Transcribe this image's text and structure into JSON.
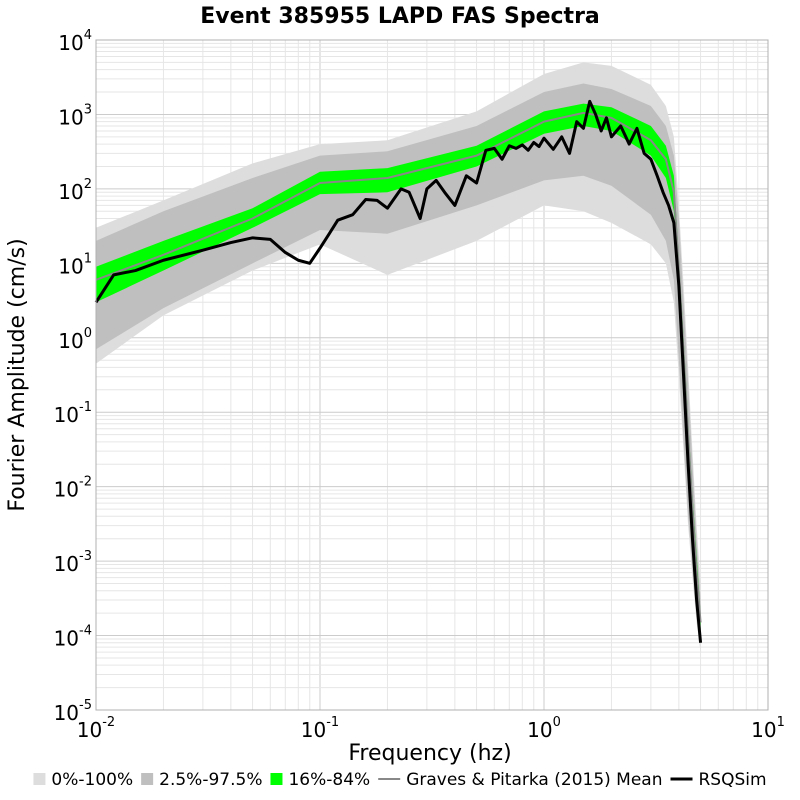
{
  "chart_data": {
    "type": "area",
    "title": "Event 385955 LAPD FAS Spectra",
    "xlabel": "Frequency (hz)",
    "ylabel": "Fourier Amplitude (cm/s)",
    "x_scale": "log",
    "y_scale": "log",
    "xlim": [
      0.01,
      10
    ],
    "ylim": [
      1e-05,
      10000
    ],
    "x_ticks": [
      {
        "base": "10",
        "exp": "-2"
      },
      {
        "base": "10",
        "exp": "-1"
      },
      {
        "base": "10",
        "exp": "0"
      },
      {
        "base": "10",
        "exp": "1"
      }
    ],
    "y_ticks": [
      {
        "base": "10",
        "exp": "-5"
      },
      {
        "base": "10",
        "exp": "-4"
      },
      {
        "base": "10",
        "exp": "-3"
      },
      {
        "base": "10",
        "exp": "-2"
      },
      {
        "base": "10",
        "exp": "-1"
      },
      {
        "base": "10",
        "exp": "0"
      },
      {
        "base": "10",
        "exp": "1"
      },
      {
        "base": "10",
        "exp": "2"
      },
      {
        "base": "10",
        "exp": "3"
      },
      {
        "base": "10",
        "exp": "4"
      }
    ],
    "grid": true,
    "legend_position": "bottom",
    "bands": [
      {
        "name": "0%-100%",
        "color": "#dddddd",
        "x": [
          0.01,
          0.02,
          0.05,
          0.1,
          0.2,
          0.5,
          1,
          1.5,
          2,
          3,
          3.5,
          3.8,
          4,
          4.2,
          4.4,
          4.6,
          4.8,
          5.0
        ],
        "lower": [
          0.45,
          2.0,
          8.0,
          18,
          7,
          20,
          60,
          50,
          35,
          18,
          10,
          3.0,
          0.3,
          0.03,
          0.003,
          0.0006,
          0.00015,
          6e-05
        ],
        "upper": [
          30,
          70,
          220,
          400,
          450,
          1100,
          3500,
          5000,
          4500,
          2500,
          1300,
          500,
          60,
          5,
          0.4,
          0.03,
          0.003,
          0.0005
        ]
      },
      {
        "name": "2.5%-97.5%",
        "color": "#bfbfbf",
        "x": [
          0.01,
          0.02,
          0.05,
          0.1,
          0.2,
          0.5,
          1,
          1.5,
          2,
          3,
          3.5,
          3.8,
          4,
          4.2,
          4.4,
          4.6,
          4.8,
          5.0
        ],
        "lower": [
          0.7,
          2.5,
          10,
          28,
          25,
          60,
          130,
          150,
          110,
          45,
          20,
          6,
          0.5,
          0.04,
          0.004,
          0.0008,
          0.0002,
          8e-05
        ],
        "upper": [
          20,
          50,
          140,
          280,
          320,
          700,
          2000,
          2600,
          2200,
          1300,
          700,
          280,
          40,
          3,
          0.25,
          0.02,
          0.002,
          0.0003
        ]
      },
      {
        "name": "16%-84%",
        "color": "#00ff00",
        "x": [
          0.01,
          0.02,
          0.05,
          0.1,
          0.2,
          0.5,
          1,
          1.5,
          2,
          3,
          3.5,
          3.8,
          4,
          4.2,
          4.4,
          4.6,
          4.8,
          5.0
        ],
        "lower": [
          3.0,
          8.0,
          30,
          85,
          90,
          200,
          550,
          700,
          600,
          280,
          140,
          50,
          4,
          0.3,
          0.03,
          0.003,
          0.0004,
          0.00012
        ],
        "upper": [
          9.0,
          20,
          55,
          170,
          190,
          380,
          1100,
          1400,
          1250,
          700,
          380,
          150,
          12,
          1.0,
          0.08,
          0.008,
          0.0012,
          0.0002
        ]
      }
    ],
    "series": [
      {
        "name": "Graves & Pitarka (2015) Mean",
        "color": "#888888",
        "x": [
          0.01,
          0.02,
          0.05,
          0.1,
          0.2,
          0.5,
          1,
          1.5,
          2,
          3,
          3.5,
          3.8,
          4,
          4.2,
          4.4,
          4.6,
          4.8,
          5.0
        ],
        "y": [
          6.0,
          13,
          40,
          120,
          140,
          280,
          800,
          1050,
          900,
          450,
          250,
          90,
          8,
          0.6,
          0.05,
          0.005,
          0.0007,
          0.00015
        ]
      },
      {
        "name": "RSQSim",
        "color": "#000000",
        "x": [
          0.01,
          0.012,
          0.015,
          0.02,
          0.03,
          0.04,
          0.05,
          0.06,
          0.07,
          0.08,
          0.09,
          0.1,
          0.11,
          0.12,
          0.14,
          0.16,
          0.18,
          0.2,
          0.23,
          0.25,
          0.28,
          0.3,
          0.33,
          0.36,
          0.4,
          0.45,
          0.5,
          0.55,
          0.6,
          0.65,
          0.7,
          0.75,
          0.8,
          0.85,
          0.9,
          0.95,
          1.0,
          1.1,
          1.2,
          1.3,
          1.4,
          1.5,
          1.6,
          1.7,
          1.8,
          1.9,
          2.0,
          2.2,
          2.4,
          2.6,
          2.8,
          3.0,
          3.2,
          3.4,
          3.6,
          3.8,
          4.0,
          4.2,
          4.4,
          4.6,
          4.8,
          5.0
        ],
        "y": [
          3.0,
          7.0,
          8.0,
          11,
          15,
          19,
          22,
          21,
          14,
          11,
          10,
          16,
          25,
          38,
          45,
          72,
          70,
          55,
          100,
          90,
          40,
          100,
          130,
          90,
          60,
          150,
          120,
          330,
          350,
          250,
          380,
          350,
          390,
          330,
          420,
          370,
          480,
          340,
          500,
          300,
          800,
          650,
          1500,
          1000,
          600,
          900,
          500,
          700,
          400,
          650,
          300,
          250,
          150,
          90,
          60,
          35,
          5,
          0.3,
          0.02,
          0.002,
          0.0003,
          8e-05
        ]
      }
    ],
    "legend": [
      {
        "label": "0%-100%",
        "color": "#dddddd",
        "kind": "band"
      },
      {
        "label": "2.5%-97.5%",
        "color": "#bfbfbf",
        "kind": "band"
      },
      {
        "label": "16%-84%",
        "color": "#00ff00",
        "kind": "band"
      },
      {
        "label": "Graves & Pitarka (2015) Mean",
        "color": "#888888",
        "kind": "line"
      },
      {
        "label": "RSQSim",
        "color": "#000000",
        "kind": "line"
      }
    ]
  }
}
